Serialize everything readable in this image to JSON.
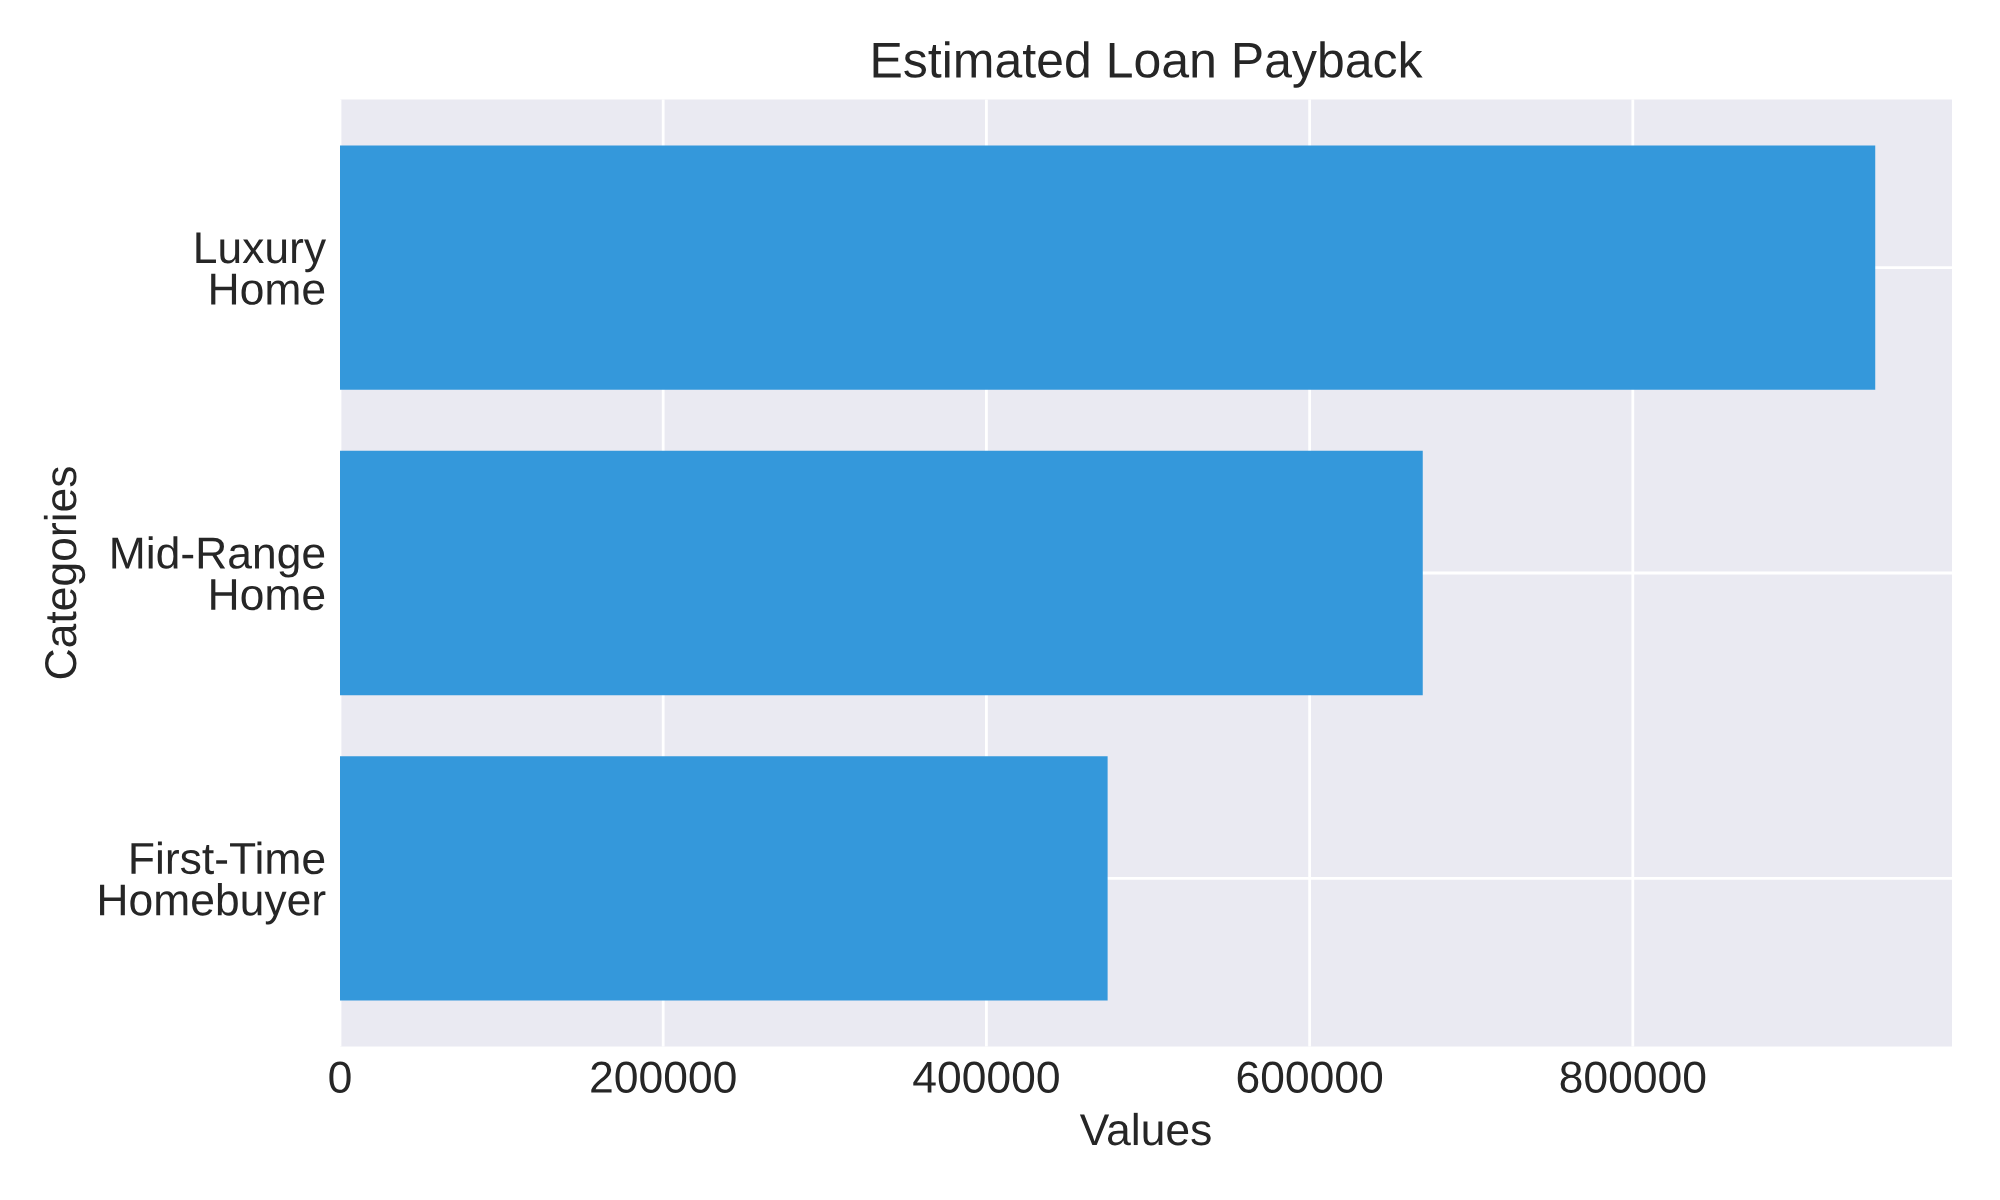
{
  "chart_data": {
    "type": "bar",
    "orientation": "horizontal",
    "title": "Estimated Loan Payback",
    "xlabel": "Values",
    "ylabel": "Categories",
    "categories": [
      "Luxury\nHome",
      "Mid-Range\nHome",
      "First-Time\nHomebuyer"
    ],
    "values": [
      950000,
      670000,
      475000
    ],
    "color": "#3498db",
    "xlim": [
      0,
      997500
    ],
    "xticks": [
      0,
      200000,
      400000,
      600000,
      800000
    ],
    "grid": true,
    "legend": false
  }
}
